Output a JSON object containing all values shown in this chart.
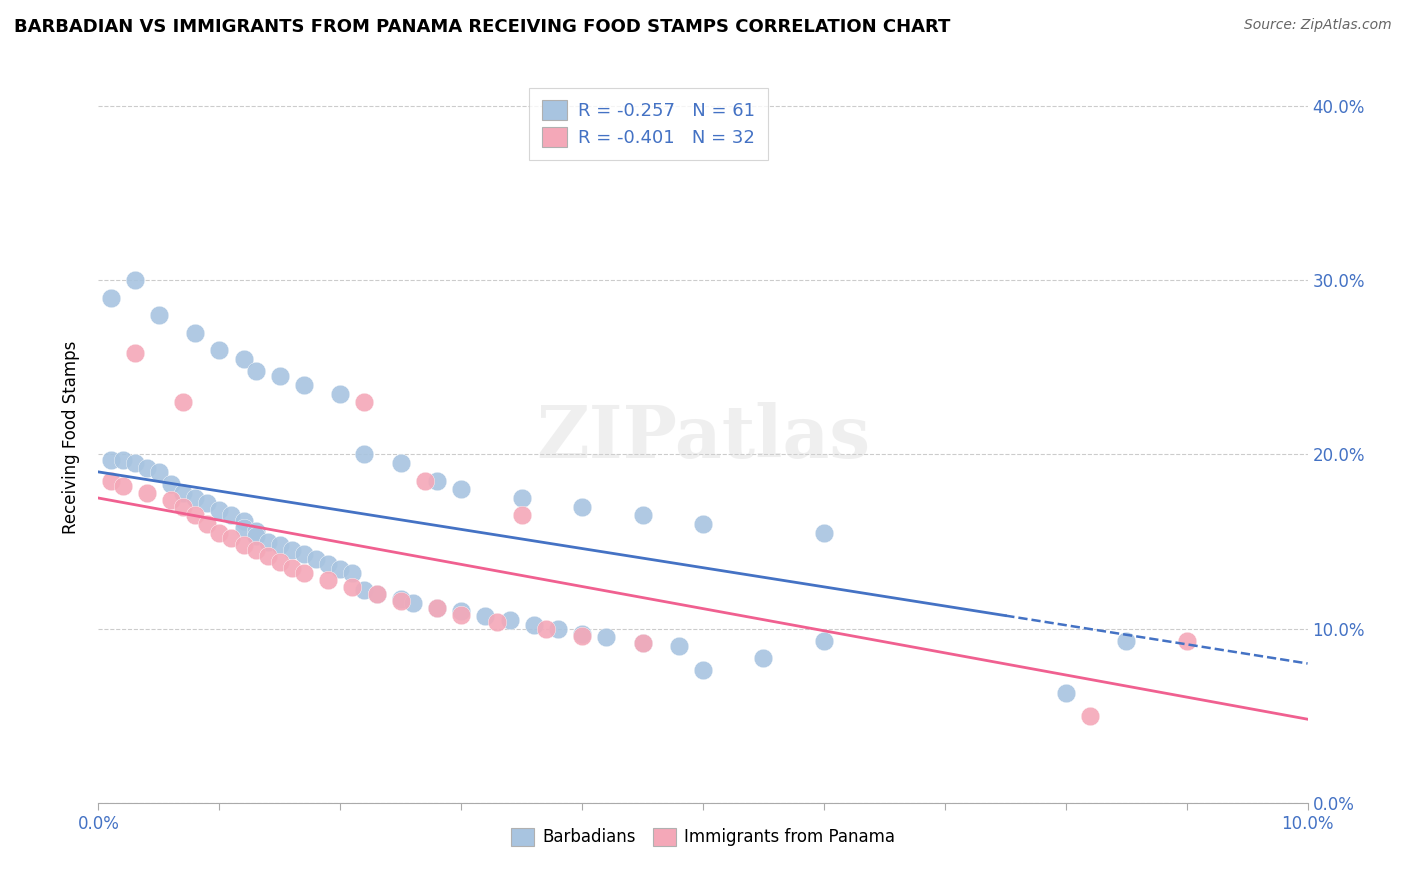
{
  "title": "BARBADIAN VS IMMIGRANTS FROM PANAMA RECEIVING FOOD STAMPS CORRELATION CHART",
  "source": "Source: ZipAtlas.com",
  "ylabel": "Receiving Food Stamps",
  "legend_blue_r": "R = -0.257",
  "legend_blue_n": "N = 61",
  "legend_pink_r": "R = -0.401",
  "legend_pink_n": "N = 32",
  "legend_bottom_blue": "Barbadians",
  "legend_bottom_pink": "Immigrants from Panama",
  "watermark": "ZIPatlas",
  "blue_color": "#a8c4e0",
  "pink_color": "#f4a8b8",
  "blue_line_color": "#4472c4",
  "pink_line_color": "#f06090",
  "blue_line": {
    "x0": 0.0,
    "x1": 0.1,
    "y0": 0.19,
    "y1": 0.08
  },
  "blue_line_solid_end": 0.075,
  "pink_line": {
    "x0": 0.0,
    "x1": 0.1,
    "y0": 0.175,
    "y1": 0.048
  },
  "xmin": 0.0,
  "xmax": 0.1,
  "ymin": 0.0,
  "ymax": 0.42,
  "ytick_vals": [
    0.0,
    0.1,
    0.2,
    0.3,
    0.4
  ],
  "ytick_labels": [
    "0.0%",
    "10.0%",
    "20.0%",
    "30.0%",
    "40.0%"
  ],
  "blue_dots_x": [
    0.001,
    0.002,
    0.003,
    0.004,
    0.005,
    0.006,
    0.007,
    0.008,
    0.009,
    0.01,
    0.011,
    0.012,
    0.012,
    0.013,
    0.013,
    0.014,
    0.015,
    0.016,
    0.017,
    0.018,
    0.019,
    0.02,
    0.021,
    0.022,
    0.023,
    0.025,
    0.026,
    0.028,
    0.03,
    0.032,
    0.034,
    0.036,
    0.038,
    0.04,
    0.042,
    0.045,
    0.048,
    0.05,
    0.055,
    0.06,
    0.001,
    0.003,
    0.005,
    0.008,
    0.01,
    0.012,
    0.013,
    0.015,
    0.017,
    0.02,
    0.022,
    0.025,
    0.028,
    0.03,
    0.035,
    0.04,
    0.045,
    0.05,
    0.06,
    0.08,
    0.085
  ],
  "blue_dots_y": [
    0.197,
    0.197,
    0.195,
    0.192,
    0.19,
    0.183,
    0.178,
    0.175,
    0.172,
    0.168,
    0.165,
    0.162,
    0.158,
    0.156,
    0.153,
    0.15,
    0.148,
    0.145,
    0.143,
    0.14,
    0.137,
    0.134,
    0.132,
    0.122,
    0.12,
    0.117,
    0.115,
    0.112,
    0.11,
    0.107,
    0.105,
    0.102,
    0.1,
    0.097,
    0.095,
    0.092,
    0.09,
    0.076,
    0.083,
    0.093,
    0.29,
    0.3,
    0.28,
    0.27,
    0.26,
    0.255,
    0.248,
    0.245,
    0.24,
    0.235,
    0.2,
    0.195,
    0.185,
    0.18,
    0.175,
    0.17,
    0.165,
    0.16,
    0.155,
    0.063,
    0.093
  ],
  "pink_dots_x": [
    0.001,
    0.002,
    0.004,
    0.006,
    0.007,
    0.008,
    0.009,
    0.01,
    0.011,
    0.012,
    0.013,
    0.014,
    0.015,
    0.016,
    0.017,
    0.019,
    0.021,
    0.023,
    0.025,
    0.028,
    0.03,
    0.033,
    0.037,
    0.04,
    0.045,
    0.022,
    0.027,
    0.035,
    0.003,
    0.007,
    0.082,
    0.09
  ],
  "pink_dots_y": [
    0.185,
    0.182,
    0.178,
    0.174,
    0.17,
    0.165,
    0.16,
    0.155,
    0.152,
    0.148,
    0.145,
    0.142,
    0.138,
    0.135,
    0.132,
    0.128,
    0.124,
    0.12,
    0.116,
    0.112,
    0.108,
    0.104,
    0.1,
    0.096,
    0.092,
    0.23,
    0.185,
    0.165,
    0.258,
    0.23,
    0.05,
    0.093
  ]
}
